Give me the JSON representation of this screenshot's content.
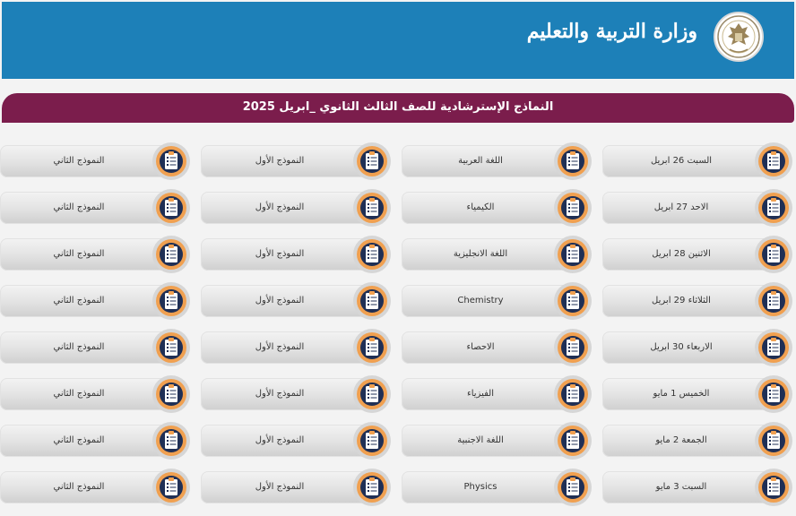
{
  "header": {
    "title": "وزارة التربية والتعليم",
    "logo_icon": "ministry-emblem-icon"
  },
  "banner": {
    "title": "النماذج الإسترشادية للصف الثالث الثانوي _ابريل 2025"
  },
  "schedule": {
    "item_icon": "document-checklist-icon",
    "rows": [
      {
        "date": "السبت 26 ابريل",
        "subject": "اللغة العربية",
        "model1": "النموذج الأول",
        "model2": "النموذج الثاني"
      },
      {
        "date": "الاحد 27 ابريل",
        "subject": "الكيمياء",
        "model1": "النموذج الأول",
        "model2": "النموذج الثاني"
      },
      {
        "date": "الاثنين  28 ابريل",
        "subject": "اللغة الانجليزية",
        "model1": "النموذج الأول",
        "model2": "النموذج الثاني"
      },
      {
        "date": "الثلاثاء  29 ابريل",
        "subject": "Chemistry",
        "model1": "النموذج الأول",
        "model2": "النموذج الثاني"
      },
      {
        "date": "الاربعاء 30 ابريل",
        "subject": "الاحصاء",
        "model1": "النموذج الأول",
        "model2": "النموذج الثاني"
      },
      {
        "date": "الخميس 1 مايو",
        "subject": "الفيزياء",
        "model1": "النموذج الأول",
        "model2": "النموذج الثاني"
      },
      {
        "date": "الجمعة 2 مايو",
        "subject": "اللغة الاجنبية",
        "model1": "النموذج الأول",
        "model2": "النموذج الثاني"
      },
      {
        "date": "السبت 3 مايو",
        "subject": "Physics",
        "model1": "النموذج الأول",
        "model2": "النموذج الثاني"
      }
    ]
  },
  "colors": {
    "header_bg": "#1d80b8",
    "banner_bg": "#7b1d4c",
    "icon_ring": "#f0a050",
    "icon_center": "#1f2f55"
  }
}
